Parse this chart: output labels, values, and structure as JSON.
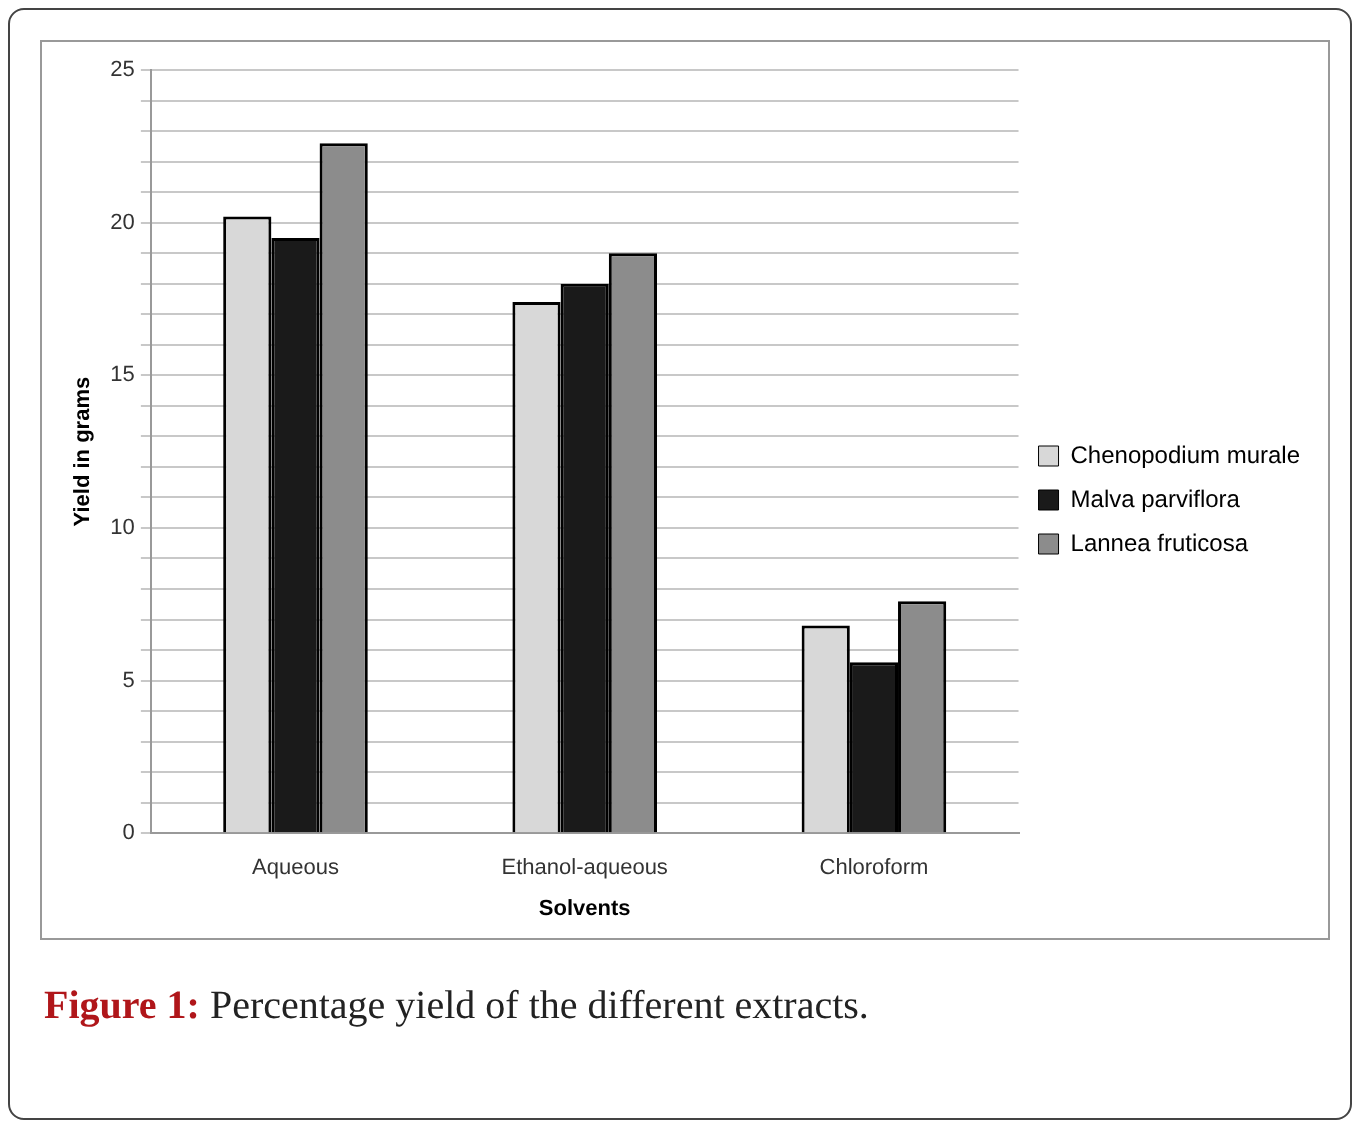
{
  "chart_data": {
    "type": "bar",
    "xlabel": "Solvents",
    "ylabel": "Yield in grams",
    "categories": [
      "Aqueous",
      "Ethanol-aqueous",
      "Chloroform"
    ],
    "series": [
      {
        "name": "Chenopodium murale",
        "color": "#d8d8d8",
        "values": [
          20.2,
          17.4,
          6.8
        ]
      },
      {
        "name": "Malva parviflora",
        "color": "#1a1a1a",
        "values": [
          19.5,
          18.0,
          5.6
        ]
      },
      {
        "name": "Lannea fruticosa",
        "color": "#8c8c8c",
        "values": [
          22.6,
          19.0,
          7.6
        ]
      }
    ],
    "ylim": [
      0,
      25
    ],
    "yticks": [
      0,
      {
        "value": 1,
        "label": null
      },
      {
        "value": 2,
        "label": null
      },
      {
        "value": 3,
        "label": null
      },
      {
        "value": 4,
        "label": null
      },
      5,
      {
        "value": 6,
        "label": null
      },
      {
        "value": 7,
        "label": null
      },
      {
        "value": 8,
        "label": null
      },
      {
        "value": 9,
        "label": null
      },
      10,
      {
        "value": 11,
        "label": null
      },
      {
        "value": 12,
        "label": null
      },
      {
        "value": 13,
        "label": null
      },
      {
        "value": 14,
        "label": null
      },
      15,
      {
        "value": 16,
        "label": null
      },
      {
        "value": 17,
        "label": null
      },
      {
        "value": 18,
        "label": null
      },
      {
        "value": 19,
        "label": null
      },
      20,
      {
        "value": 21,
        "label": null
      },
      {
        "value": 22,
        "label": null
      },
      {
        "value": 23,
        "label": null
      },
      {
        "value": 24,
        "label": null
      },
      25
    ],
    "grid": "y",
    "legend": "right",
    "annotations": [
      "Figure 1: Percentage yield of the different extracts."
    ]
  }
}
